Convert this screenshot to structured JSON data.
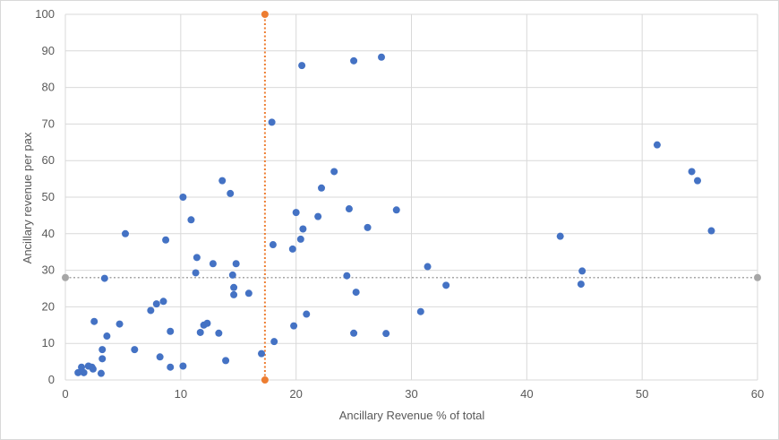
{
  "chart_data": {
    "type": "scatter",
    "title": "",
    "xlabel": "Ancillary Revenue % of total",
    "ylabel": "Ancillary revenue per pax",
    "xlim": [
      0,
      60
    ],
    "ylim": [
      0,
      100
    ],
    "x_ticks": [
      "0",
      "10",
      "20",
      "30",
      "40",
      "50",
      "60"
    ],
    "y_ticks": [
      "0",
      "10",
      "20",
      "30",
      "40",
      "50",
      "60",
      "70",
      "80",
      "90",
      "100"
    ],
    "grid": "vertical and horizontal major gridlines",
    "legend": "none",
    "colors": {
      "points": "#4472C4",
      "vertical_reference": "#ED7D31",
      "horizontal_reference": "#A6A6A6",
      "grid": "#D9D9D9"
    },
    "reference_lines": [
      {
        "orientation": "vertical",
        "x": 17.3,
        "y_from": 0,
        "y_to": 100
      },
      {
        "orientation": "horizontal",
        "y": 28,
        "x_from": 0,
        "x_to": 60
      }
    ],
    "points": [
      {
        "x": 1.1,
        "y": 2.0
      },
      {
        "x": 1.4,
        "y": 3.5
      },
      {
        "x": 1.6,
        "y": 2.0
      },
      {
        "x": 2.0,
        "y": 3.8
      },
      {
        "x": 2.3,
        "y": 3.5
      },
      {
        "x": 2.4,
        "y": 3.0
      },
      {
        "x": 2.5,
        "y": 16.0
      },
      {
        "x": 3.1,
        "y": 1.8
      },
      {
        "x": 3.2,
        "y": 8.3
      },
      {
        "x": 3.2,
        "y": 5.8
      },
      {
        "x": 3.4,
        "y": 27.8
      },
      {
        "x": 3.6,
        "y": 12.0
      },
      {
        "x": 4.7,
        "y": 15.3
      },
      {
        "x": 5.2,
        "y": 40.0
      },
      {
        "x": 6.0,
        "y": 8.3
      },
      {
        "x": 7.4,
        "y": 19.0
      },
      {
        "x": 7.9,
        "y": 20.8
      },
      {
        "x": 8.2,
        "y": 6.3
      },
      {
        "x": 8.5,
        "y": 21.5
      },
      {
        "x": 8.7,
        "y": 38.3
      },
      {
        "x": 9.1,
        "y": 13.3
      },
      {
        "x": 9.1,
        "y": 3.5
      },
      {
        "x": 10.2,
        "y": 3.8
      },
      {
        "x": 10.2,
        "y": 50.0
      },
      {
        "x": 10.9,
        "y": 43.8
      },
      {
        "x": 11.3,
        "y": 29.3
      },
      {
        "x": 11.4,
        "y": 33.5
      },
      {
        "x": 11.7,
        "y": 13.0
      },
      {
        "x": 12.0,
        "y": 15.0
      },
      {
        "x": 12.3,
        "y": 15.5
      },
      {
        "x": 12.8,
        "y": 31.8
      },
      {
        "x": 13.3,
        "y": 12.8
      },
      {
        "x": 13.6,
        "y": 54.5
      },
      {
        "x": 13.9,
        "y": 5.3
      },
      {
        "x": 14.3,
        "y": 51.0
      },
      {
        "x": 14.5,
        "y": 28.7
      },
      {
        "x": 14.6,
        "y": 25.3
      },
      {
        "x": 14.6,
        "y": 23.3
      },
      {
        "x": 14.8,
        "y": 31.8
      },
      {
        "x": 15.9,
        "y": 23.7
      },
      {
        "x": 17.0,
        "y": 7.2
      },
      {
        "x": 17.9,
        "y": 70.5
      },
      {
        "x": 18.0,
        "y": 37.0
      },
      {
        "x": 18.1,
        "y": 10.5
      },
      {
        "x": 19.7,
        "y": 35.8
      },
      {
        "x": 19.8,
        "y": 14.8
      },
      {
        "x": 20.0,
        "y": 45.8
      },
      {
        "x": 20.4,
        "y": 38.5
      },
      {
        "x": 20.5,
        "y": 86.0
      },
      {
        "x": 20.6,
        "y": 41.3
      },
      {
        "x": 20.9,
        "y": 18.0
      },
      {
        "x": 21.9,
        "y": 44.7
      },
      {
        "x": 22.2,
        "y": 52.5
      },
      {
        "x": 23.3,
        "y": 57.0
      },
      {
        "x": 24.4,
        "y": 28.5
      },
      {
        "x": 24.6,
        "y": 46.8
      },
      {
        "x": 25.0,
        "y": 87.3
      },
      {
        "x": 25.0,
        "y": 12.8
      },
      {
        "x": 25.2,
        "y": 24.0
      },
      {
        "x": 26.2,
        "y": 41.7
      },
      {
        "x": 27.4,
        "y": 88.3
      },
      {
        "x": 27.8,
        "y": 12.7
      },
      {
        "x": 28.7,
        "y": 46.5
      },
      {
        "x": 30.8,
        "y": 18.7
      },
      {
        "x": 31.4,
        "y": 31.0
      },
      {
        "x": 33.0,
        "y": 25.9
      },
      {
        "x": 42.9,
        "y": 39.3
      },
      {
        "x": 44.7,
        "y": 26.2
      },
      {
        "x": 44.8,
        "y": 29.8
      },
      {
        "x": 51.3,
        "y": 64.3
      },
      {
        "x": 54.3,
        "y": 57.0
      },
      {
        "x": 54.8,
        "y": 54.5
      },
      {
        "x": 56.0,
        "y": 40.8
      }
    ]
  }
}
